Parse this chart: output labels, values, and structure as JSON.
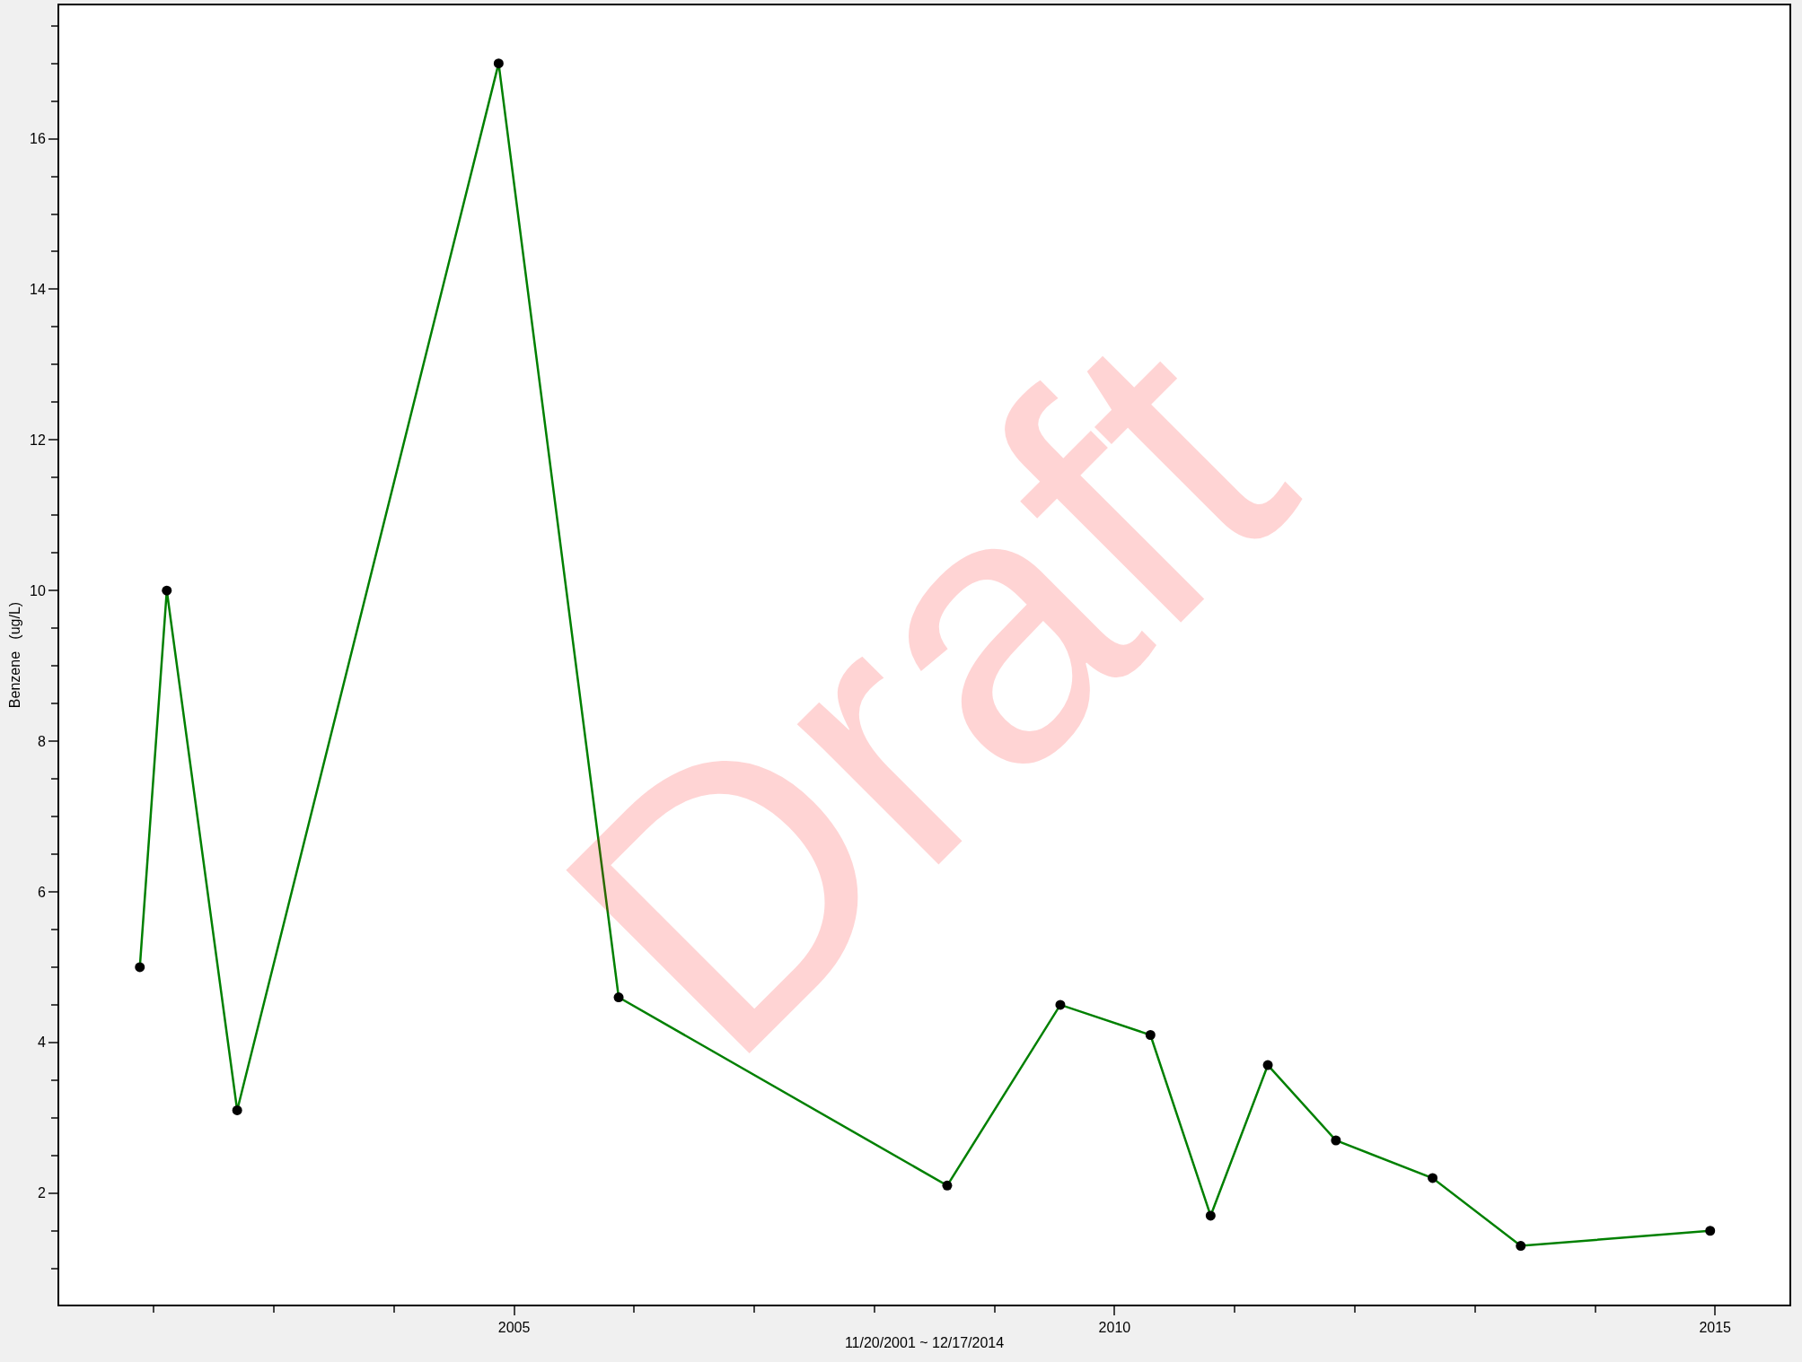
{
  "chart_data": {
    "type": "line",
    "xlabel": "11/20/2001 ~ 12/17/2014",
    "ylabel": "Benzene   (ug/L)",
    "x": [
      "2001-11-20",
      "2002-02-10",
      "2002-09-12",
      "2004-11-15",
      "2005-11-15",
      "2008-08-10",
      "2009-07-20",
      "2010-04-20",
      "2010-10-20",
      "2011-04-12",
      "2011-11-05",
      "2012-08-25",
      "2013-05-20",
      "2014-12-17"
    ],
    "series": [
      {
        "color": "#008000",
        "values": [
          5,
          10,
          3.1,
          17,
          4.6,
          2.1,
          4.5,
          4.1,
          1.7,
          3.7,
          2.7,
          2.2,
          1.3,
          1.5
        ]
      }
    ],
    "marker": "circle",
    "line_style": "solid",
    "xlim": [
      "2001-03-20",
      "2015-08-15"
    ],
    "ylim": [
      0.52,
      17.77
    ],
    "xticks": [
      {
        "value": "2005-01-01",
        "label": "2005"
      },
      {
        "value": "2010-01-01",
        "label": "2010"
      },
      {
        "value": "2015-01-01",
        "label": "2015"
      }
    ],
    "yticks": [
      2,
      4,
      6,
      8,
      10,
      12,
      14,
      16
    ],
    "annotations": [
      "Draft"
    ]
  }
}
